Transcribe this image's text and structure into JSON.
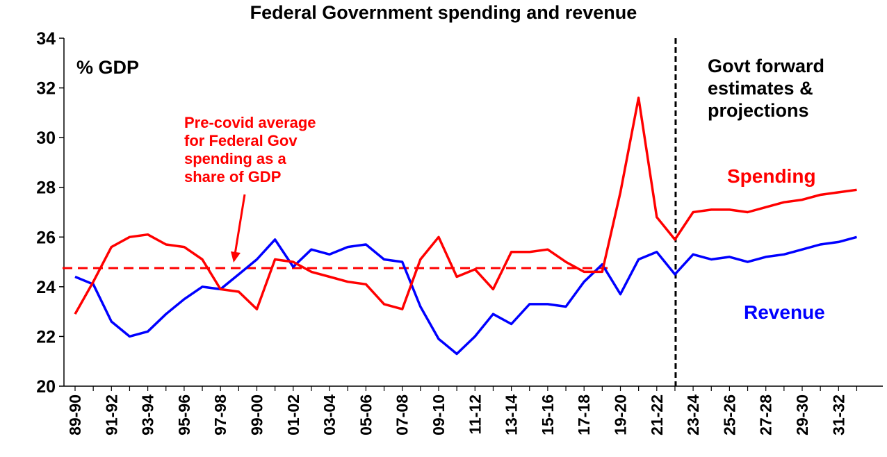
{
  "chart_data": {
    "type": "line",
    "title": "Federal Government spending and revenue",
    "unit_label": "% GDP",
    "ylim": [
      20,
      34
    ],
    "yticks": [
      20,
      22,
      24,
      26,
      28,
      30,
      32,
      34
    ],
    "x": [
      "89-90",
      "90-91",
      "91-92",
      "92-93",
      "93-94",
      "94-95",
      "95-96",
      "96-97",
      "97-98",
      "98-99",
      "99-00",
      "00-01",
      "01-02",
      "02-03",
      "03-04",
      "04-05",
      "05-06",
      "06-07",
      "07-08",
      "08-09",
      "09-10",
      "10-11",
      "11-12",
      "12-13",
      "13-14",
      "14-15",
      "15-16",
      "16-17",
      "17-18",
      "18-19",
      "19-20",
      "20-21",
      "21-22",
      "22-23",
      "23-24",
      "24-25",
      "25-26",
      "26-27",
      "27-28",
      "28-29",
      "29-30",
      "30-31",
      "31-32",
      "32-33"
    ],
    "xtick_labels": [
      "89-90",
      "91-92",
      "93-94",
      "95-96",
      "97-98",
      "99-00",
      "01-02",
      "03-04",
      "05-06",
      "07-08",
      "09-10",
      "11-12",
      "13-14",
      "15-16",
      "17-18",
      "19-20",
      "21-22",
      "23-24",
      "25-26",
      "27-28",
      "29-30",
      "31-32"
    ],
    "series": [
      {
        "name": "Spending",
        "color": "#ff0000",
        "values": [
          22.9,
          24.2,
          25.6,
          26.0,
          26.1,
          25.7,
          25.6,
          25.1,
          23.9,
          23.8,
          23.1,
          25.1,
          25.0,
          24.6,
          24.4,
          24.2,
          24.1,
          23.3,
          23.1,
          25.1,
          26.0,
          24.4,
          24.7,
          23.9,
          25.4,
          25.4,
          25.5,
          25.0,
          24.6,
          24.6,
          27.8,
          31.6,
          26.8,
          25.9,
          27.0,
          27.1,
          27.1,
          27.0,
          27.2,
          27.4,
          27.5,
          27.7,
          27.8,
          27.9
        ]
      },
      {
        "name": "Revenue",
        "color": "#0000ff",
        "values": [
          24.4,
          24.1,
          22.6,
          22.0,
          22.2,
          22.9,
          23.5,
          24.0,
          23.9,
          24.5,
          25.1,
          25.9,
          24.8,
          25.5,
          25.3,
          25.6,
          25.7,
          25.1,
          25.0,
          23.2,
          21.9,
          21.3,
          22.0,
          22.9,
          22.5,
          23.3,
          23.3,
          23.2,
          24.2,
          24.9,
          23.7,
          25.1,
          25.4,
          24.5,
          25.3,
          25.1,
          25.2,
          25.0,
          25.2,
          25.3,
          25.5,
          25.7,
          25.8,
          26.0
        ]
      }
    ],
    "reference_line": {
      "label": "Pre-covid average for Federal Gov spending as a share of GDP",
      "label_lines": [
        "Pre-covid average",
        "for Federal Gov",
        "spending as a",
        "share of GDP"
      ],
      "value": 24.75,
      "from": "89-90",
      "to": "19-20",
      "color": "#ff0000",
      "style": "dashed"
    },
    "forecast_divider": {
      "after": "22-23",
      "label_lines": [
        "Govt forward",
        "estimates &",
        "projections"
      ],
      "style": "dashed",
      "color": "#000000"
    },
    "legend": "inline labels"
  }
}
